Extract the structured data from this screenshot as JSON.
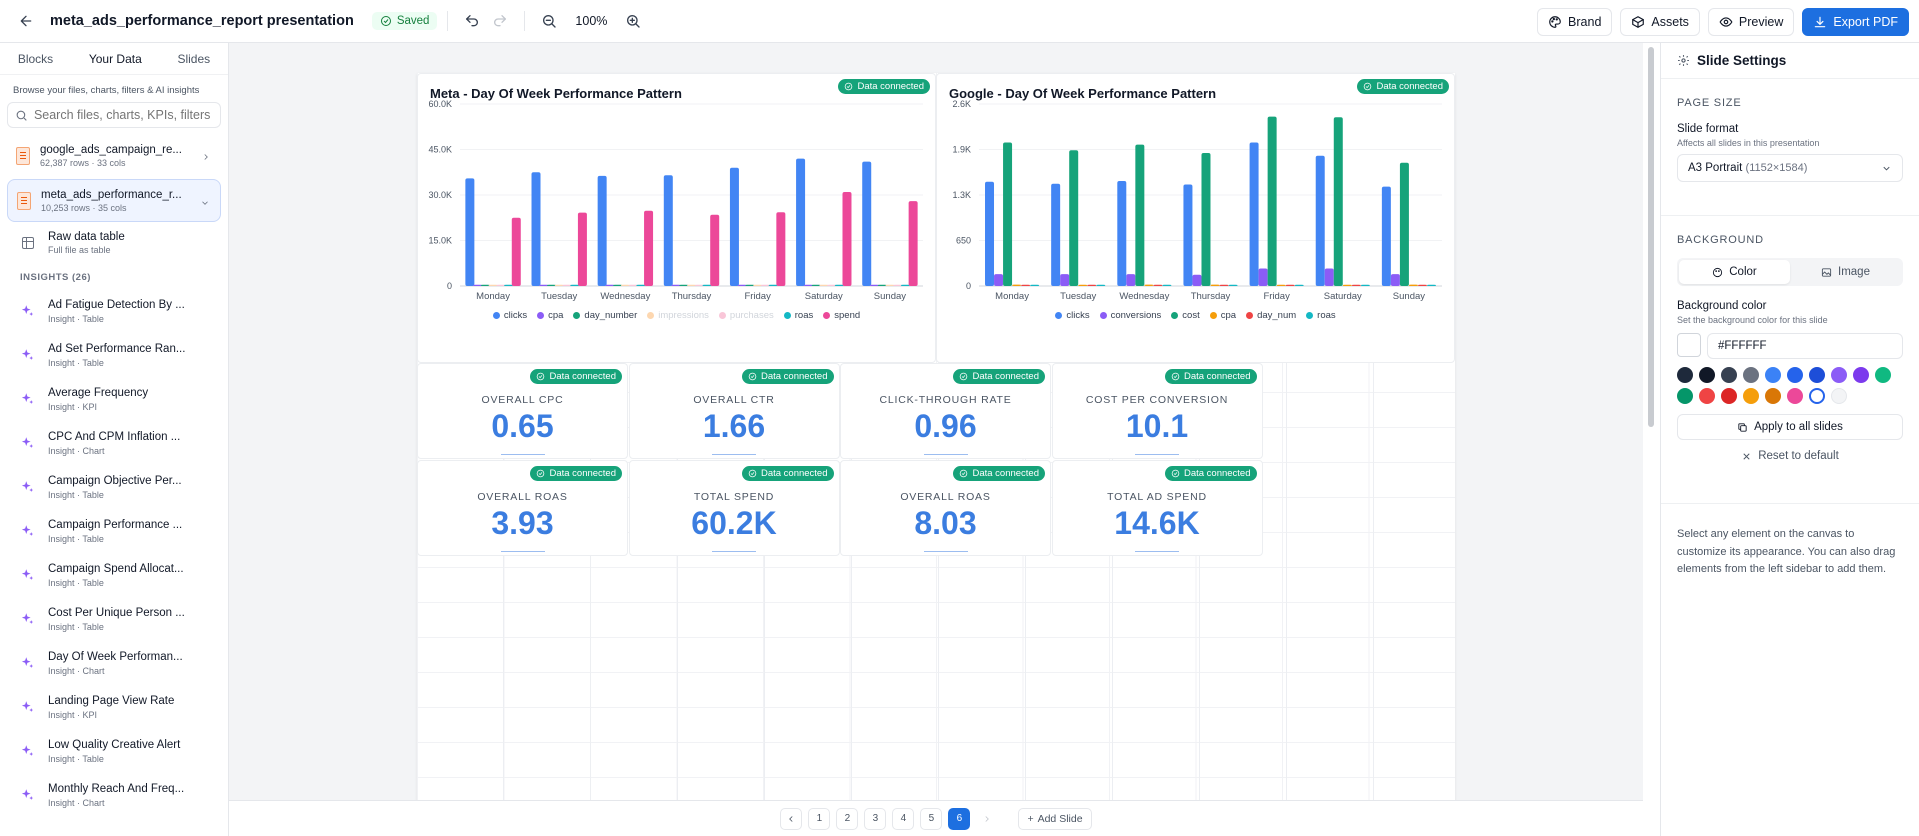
{
  "header": {
    "title": "meta_ads_performance_report presentation",
    "saved": "Saved",
    "zoom": "100%",
    "brand": "Brand",
    "assets": "Assets",
    "preview": "Preview",
    "export": "Export PDF"
  },
  "sidebar": {
    "tabs": [
      "Blocks",
      "Your Data",
      "Slides"
    ],
    "hint": "Browse your files, charts, filters & AI insights",
    "search_placeholder": "Search files, charts, KPIs, filters",
    "files": [
      {
        "name": "google_ads_campaign_re...",
        "meta": "62,387 rows · 33 cols"
      },
      {
        "name": "meta_ads_performance_r...",
        "meta": "10,253 rows · 35 cols"
      }
    ],
    "raw": {
      "name": "Raw data table",
      "meta": "Full file as table"
    },
    "insights_header": "INSIGHTS (26)",
    "insights": [
      {
        "name": "Ad Fatigue Detection By ...",
        "meta": "Insight · Table"
      },
      {
        "name": "Ad Set Performance Ran...",
        "meta": "Insight · Table"
      },
      {
        "name": "Average Frequency",
        "meta": "Insight · KPI"
      },
      {
        "name": "CPC And CPM Inflation ...",
        "meta": "Insight · Chart"
      },
      {
        "name": "Campaign Objective Per...",
        "meta": "Insight · Table"
      },
      {
        "name": "Campaign Performance ...",
        "meta": "Insight · Table"
      },
      {
        "name": "Campaign Spend Allocat...",
        "meta": "Insight · Table"
      },
      {
        "name": "Cost Per Unique Person ...",
        "meta": "Insight · Table"
      },
      {
        "name": "Day Of Week Performan...",
        "meta": "Insight · Chart"
      },
      {
        "name": "Landing Page View Rate",
        "meta": "Insight · KPI"
      },
      {
        "name": "Low Quality Creative Alert",
        "meta": "Insight · Table"
      },
      {
        "name": "Monthly Reach And Freq...",
        "meta": "Insight · Chart"
      }
    ]
  },
  "badge": "Data connected",
  "kpis": [
    {
      "label": "OVERALL CPC",
      "value": "0.65"
    },
    {
      "label": "OVERALL CTR",
      "value": "1.66"
    },
    {
      "label": "CLICK-THROUGH RATE",
      "value": "0.96"
    },
    {
      "label": "COST PER CONVERSION",
      "value": "10.1"
    },
    {
      "label": "OVERALL ROAS",
      "value": "3.93"
    },
    {
      "label": "TOTAL SPEND",
      "value": "60.2K"
    },
    {
      "label": "OVERALL ROAS",
      "value": "8.03"
    },
    {
      "label": "TOTAL AD SPEND",
      "value": "14.6K"
    }
  ],
  "chart_data": [
    {
      "type": "bar",
      "title": "Meta - Day Of Week Performance Pattern",
      "categories": [
        "Monday",
        "Tuesday",
        "Wednesday",
        "Thursday",
        "Friday",
        "Saturday",
        "Sunday"
      ],
      "ylim": [
        0,
        60000
      ],
      "yticks": [
        "0",
        "15.0K",
        "30.0K",
        "45.0K",
        "60.0K"
      ],
      "legend_position": "bottom",
      "series": [
        {
          "name": "clicks",
          "color": "#4285f4",
          "values": [
            35500,
            37500,
            36300,
            36500,
            39000,
            42000,
            41000
          ]
        },
        {
          "name": "cpa",
          "color": "#8b5cf6",
          "values": [
            0,
            0,
            0,
            0,
            0,
            0,
            0
          ]
        },
        {
          "name": "day_number",
          "color": "#16a37a",
          "values": [
            1,
            2,
            3,
            4,
            5,
            6,
            7
          ]
        },
        {
          "name": "impressions",
          "color": "#fdd7b0",
          "values": [
            0,
            0,
            0,
            0,
            0,
            0,
            0
          ]
        },
        {
          "name": "purchases",
          "color": "#f9c6d8",
          "values": [
            0,
            0,
            0,
            0,
            0,
            0,
            0
          ]
        },
        {
          "name": "roas",
          "color": "#14b8c4",
          "values": [
            0,
            0,
            0,
            0,
            0,
            0,
            0
          ]
        },
        {
          "name": "spend",
          "color": "#ec4899",
          "values": [
            22500,
            24200,
            24800,
            23500,
            24300,
            31000,
            28000
          ]
        }
      ],
      "faded": [
        "impressions",
        "purchases"
      ]
    },
    {
      "type": "bar",
      "title": "Google - Day Of Week Performance Pattern",
      "categories": [
        "Monday",
        "Tuesday",
        "Wednesday",
        "Thursday",
        "Friday",
        "Saturday",
        "Sunday"
      ],
      "ylim": [
        0,
        2600
      ],
      "yticks": [
        "0",
        "650",
        "1.3K",
        "1.9K",
        "2.6K"
      ],
      "legend_position": "bottom",
      "series": [
        {
          "name": "clicks",
          "color": "#4285f4",
          "values": [
            1490,
            1460,
            1500,
            1450,
            2050,
            1860,
            1420
          ]
        },
        {
          "name": "conversions",
          "color": "#8b5cf6",
          "values": [
            170,
            170,
            170,
            160,
            250,
            250,
            170
          ]
        },
        {
          "name": "cost",
          "color": "#16a37a",
          "values": [
            2050,
            1940,
            2020,
            1900,
            2420,
            2410,
            1760
          ]
        },
        {
          "name": "cpa",
          "color": "#f59e0b",
          "values": [
            20,
            18,
            20,
            19,
            14,
            15,
            19
          ]
        },
        {
          "name": "day_num",
          "color": "#ef4444",
          "values": [
            1,
            2,
            3,
            4,
            5,
            6,
            7
          ]
        },
        {
          "name": "roas",
          "color": "#14b8c4",
          "values": [
            6,
            5,
            7,
            6,
            8,
            7,
            6
          ]
        }
      ]
    }
  ],
  "pager": {
    "pages": [
      "1",
      "2",
      "3",
      "4",
      "5",
      "6"
    ],
    "current": "6",
    "add": "Add Slide"
  },
  "settings": {
    "title": "Slide Settings",
    "page_size_h": "PAGE SIZE",
    "format_label": "Slide format",
    "format_sub": "Affects all slides in this presentation",
    "format_value": "A3 Portrait",
    "format_dims": "(1152×1584)",
    "bg_h": "BACKGROUND",
    "color_tab": "Color",
    "image_tab": "Image",
    "bg_label": "Background color",
    "bg_sub": "Set the background color for this slide",
    "bg_hex": "#FFFFFF",
    "palette": [
      "#1e293b",
      "#111827",
      "#374151",
      "#6b7280",
      "#3b82f6",
      "#2563eb",
      "#1d4ed8",
      "#8b5cf6",
      "#7c3aed",
      "#10b981",
      "#059669",
      "#ef4444",
      "#dc2626",
      "#f59e0b",
      "#d97706",
      "#ec4899",
      "#ffffff",
      "#f3f4f6"
    ],
    "apply": "Apply to all slides",
    "reset": "Reset to default",
    "note": "Select any element on the canvas to customize its appearance. You can also drag elements from the left sidebar to add them."
  }
}
